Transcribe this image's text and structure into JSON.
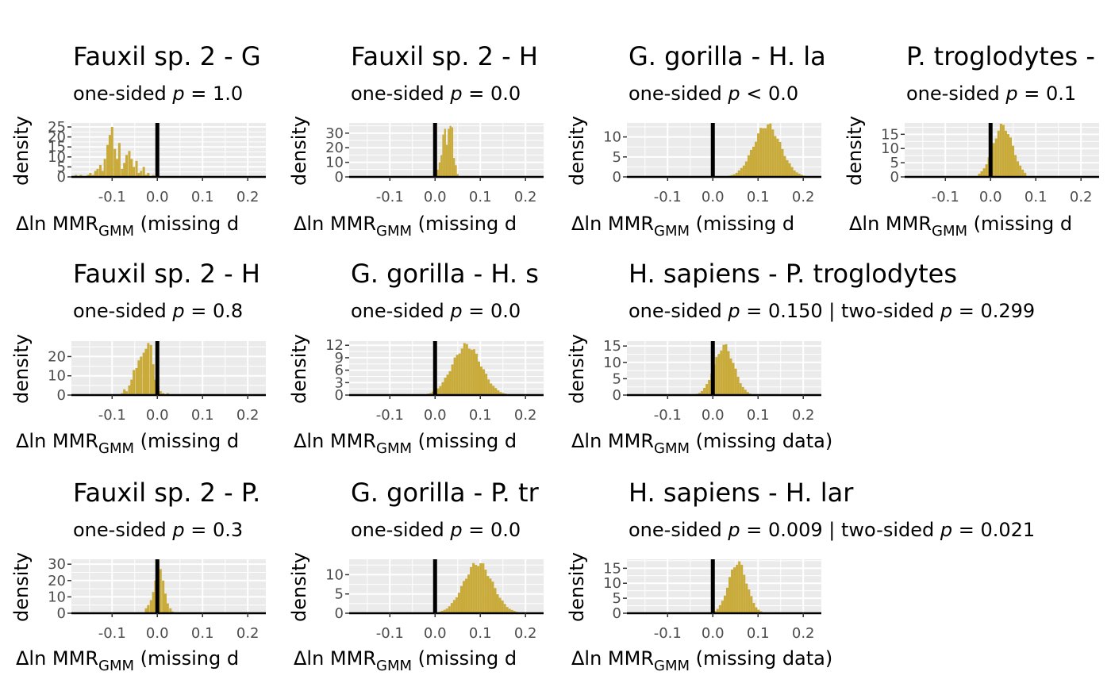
{
  "colors": {
    "bar": "#c9ab3b",
    "panel_bg": "#ebebeb",
    "grid": "#ffffff",
    "vline": "#000000"
  },
  "chart_data": [
    {
      "type": "bar",
      "title": "Fauxil sp. 2 - G",
      "subtitle_prefix": "one-sided ",
      "subtitle_op": " = 1.0",
      "xlabel": "missing d",
      "ylabel": "density",
      "xlim": [
        -0.19,
        0.24
      ],
      "yticks": [
        0,
        5,
        10,
        15,
        20,
        25
      ],
      "ymax": 27,
      "hist": {
        "bw": 0.00533,
        "x": [
          -0.18,
          -0.174,
          -0.169,
          -0.164,
          -0.158,
          -0.153,
          -0.148,
          -0.142,
          -0.137,
          -0.132,
          -0.126,
          -0.121,
          -0.116,
          -0.11,
          -0.105,
          -0.1,
          -0.094,
          -0.089,
          -0.084,
          -0.078,
          -0.073,
          -0.068,
          -0.062,
          -0.057,
          -0.052,
          -0.046,
          -0.041,
          -0.036,
          -0.03,
          -0.025,
          -0.02,
          -0.014,
          -0.009,
          -0.004
        ],
        "y": [
          1,
          0,
          1,
          0,
          0,
          1,
          2,
          1,
          3,
          4,
          6,
          3,
          9,
          16,
          21,
          25,
          14,
          9,
          17,
          4,
          7,
          11,
          13,
          9,
          5,
          8,
          2,
          3,
          5,
          1,
          2,
          0,
          1,
          0
        ]
      }
    },
    {
      "type": "bar",
      "title": "Fauxil sp. 2 - H",
      "subtitle_prefix": "one-sided ",
      "subtitle_op": " = 0.0",
      "xlabel": "missing d",
      "ylabel": "density",
      "xlim": [
        -0.19,
        0.24
      ],
      "yticks": [
        0,
        10,
        20,
        30
      ],
      "ymax": 37,
      "hist": {
        "bw": 0.004,
        "x": [
          0.002,
          0.006,
          0.01,
          0.014,
          0.018,
          0.022,
          0.026,
          0.03,
          0.034,
          0.038,
          0.042,
          0.046,
          0.05
        ],
        "y": [
          2,
          5,
          10,
          15,
          29,
          33,
          22,
          33,
          35,
          34,
          13,
          8,
          2
        ]
      }
    },
    {
      "type": "bar",
      "title": "G. gorilla - H. la",
      "subtitle_prefix": "one-sided ",
      "subtitle_op": " < 0.0",
      "xlabel": "missing d",
      "ylabel": "density",
      "xlim": [
        -0.19,
        0.24
      ],
      "yticks": [
        0,
        5,
        10
      ],
      "ymax": 13.5,
      "hist": {
        "bw": 0.00533,
        "center": 0.12,
        "sd": 0.03,
        "peak": 13,
        "from": 0.01,
        "to": 0.205
      }
    },
    {
      "type": "bar",
      "title": "P. troglodytes -",
      "subtitle_prefix": "one-sided ",
      "subtitle_op": " = 0.1",
      "xlabel": "missing d",
      "ylabel": "density",
      "xlim": [
        -0.19,
        0.24
      ],
      "yticks": [
        0,
        5,
        10,
        15
      ],
      "ymax": 19,
      "hist": {
        "bw": 0.00533,
        "center": 0.027,
        "sd": 0.022,
        "peak": 18,
        "from": -0.025,
        "to": 0.08
      }
    },
    {
      "type": "bar",
      "title": "Fauxil sp. 2 - H",
      "subtitle_prefix": "one-sided ",
      "subtitle_op": " = 0.8",
      "xlabel": "missing d",
      "ylabel": "density",
      "xlim": [
        -0.19,
        0.24
      ],
      "yticks": [
        0,
        10,
        20
      ],
      "ymax": 28,
      "hist": {
        "bw": 0.00533,
        "x": [
          -0.078,
          -0.073,
          -0.068,
          -0.062,
          -0.057,
          -0.052,
          -0.046,
          -0.041,
          -0.036,
          -0.03,
          -0.025,
          -0.02,
          -0.014,
          -0.009,
          -0.004,
          0.002,
          0.007,
          0.013,
          0.018,
          0.023
        ],
        "y": [
          1,
          3,
          2,
          5,
          8,
          13,
          14,
          18,
          20,
          22,
          24,
          27,
          26,
          16,
          8,
          5,
          2,
          1,
          0,
          1
        ]
      }
    },
    {
      "type": "bar",
      "title": "G. gorilla - H. s",
      "subtitle_prefix": "one-sided ",
      "subtitle_op": " = 0.0",
      "xlabel": "missing d",
      "ylabel": "density",
      "xlim": [
        -0.19,
        0.24
      ],
      "yticks": [
        0,
        3,
        6,
        9,
        12
      ],
      "ymax": 13,
      "hist": {
        "bw": 0.00533,
        "center": 0.07,
        "sd": 0.032,
        "peak": 12,
        "from": -0.015,
        "to": 0.16
      }
    },
    {
      "type": "bar",
      "title": "H. sapiens - P. troglodytes",
      "subtitle_prefix": "one-sided ",
      "subtitle_op": " = 0.150 | two-sided ",
      "subtitle_op2": " = 0.299",
      "xlabel": "missing data",
      "ylabel": "density",
      "xlim": [
        -0.19,
        0.24
      ],
      "yticks": [
        0,
        5,
        10,
        15
      ],
      "ymax": 16.5,
      "hist": {
        "bw": 0.00533,
        "center": 0.025,
        "sd": 0.022,
        "peak": 15,
        "from": -0.04,
        "to": 0.09
      }
    },
    {
      "type": "bar",
      "title": "Fauxil sp. 2 - P.",
      "subtitle_prefix": "one-sided ",
      "subtitle_op": " = 0.3",
      "xlabel": "missing d",
      "ylabel": "density",
      "xlim": [
        -0.19,
        0.24
      ],
      "yticks": [
        0,
        10,
        20,
        30
      ],
      "ymax": 33,
      "hist": {
        "bw": 0.00533,
        "x": [
          -0.025,
          -0.02,
          -0.014,
          -0.009,
          -0.004,
          0.002,
          0.007,
          0.013,
          0.018,
          0.023,
          0.029,
          0.034
        ],
        "y": [
          3,
          5,
          8,
          13,
          20,
          32,
          27,
          20,
          12,
          6,
          3,
          1
        ]
      }
    },
    {
      "type": "bar",
      "title": "G. gorilla - P. tr",
      "subtitle_prefix": "one-sided ",
      "subtitle_op": " = 0.0",
      "xlabel": "missing d",
      "ylabel": "density",
      "xlim": [
        -0.19,
        0.24
      ],
      "yticks": [
        0,
        5,
        10
      ],
      "ymax": 14,
      "hist": {
        "bw": 0.00533,
        "center": 0.095,
        "sd": 0.032,
        "peak": 13,
        "from": 0.005,
        "to": 0.185
      }
    },
    {
      "type": "bar",
      "title": "H. sapiens - H. lar",
      "subtitle_prefix": "one-sided ",
      "subtitle_op": " = 0.009 | two-sided ",
      "subtitle_op2": " = 0.021",
      "xlabel": "missing data",
      "ylabel": "density",
      "xlim": [
        -0.19,
        0.24
      ],
      "yticks": [
        0,
        5,
        10,
        15
      ],
      "ymax": 18,
      "hist": {
        "bw": 0.00533,
        "center": 0.055,
        "sd": 0.02,
        "peak": 17,
        "from": 0.0,
        "to": 0.11
      }
    }
  ],
  "xticks": [
    -0.1,
    0.0,
    0.1,
    0.2
  ],
  "xtick_labels": [
    "-0.1",
    "0.0",
    "0.1",
    "0.2"
  ],
  "xlabel_prefix": "Δln MMR",
  "xlabel_sub": "GMM",
  "pvar": "p"
}
